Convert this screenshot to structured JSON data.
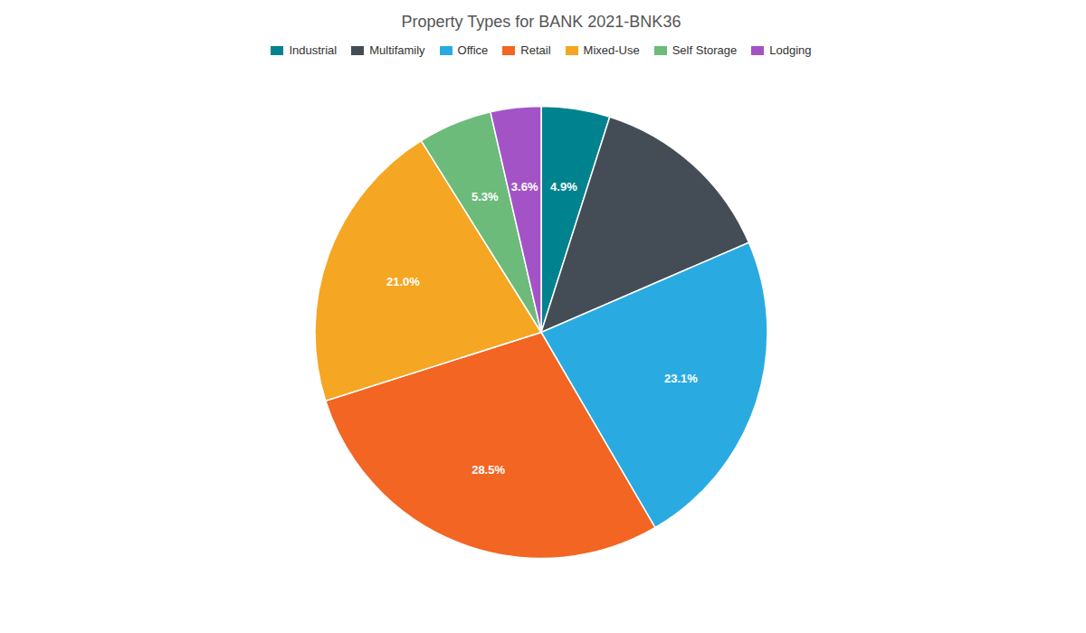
{
  "chart_data": {
    "type": "pie",
    "title": "Property Types for BANK 2021-BNK36",
    "categories": [
      "Industrial",
      "Multifamily",
      "Office",
      "Retail",
      "Mixed-Use",
      "Self Storage",
      "Lodging"
    ],
    "values": [
      4.9,
      13.6,
      23.1,
      28.5,
      21.0,
      5.3,
      3.6
    ],
    "colors": [
      "#00838f",
      "#444d55",
      "#29abe2",
      "#f26522",
      "#f5a623",
      "#6dbb7a",
      "#a353c6"
    ],
    "data_labels": true,
    "value_labels": [
      "4.9%",
      null,
      "23.1%",
      "28.5%",
      "21.0%",
      "5.3%",
      "3.6%"
    ],
    "legend": "top"
  }
}
